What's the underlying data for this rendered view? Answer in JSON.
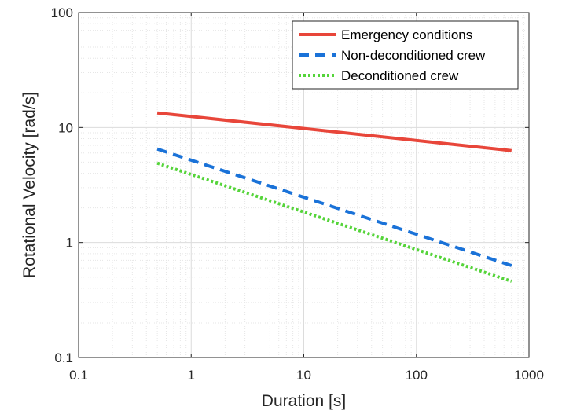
{
  "chart_data": {
    "type": "line",
    "xscale": "log",
    "yscale": "log",
    "xlim": [
      0.1,
      1000
    ],
    "ylim": [
      0.1,
      100
    ],
    "xticks": [
      0.1,
      1,
      10,
      100,
      1000
    ],
    "xtick_labels": [
      "0.1",
      "1",
      "10",
      "100",
      "1000"
    ],
    "yticks": [
      0.1,
      1,
      10,
      100
    ],
    "ytick_labels": [
      "0.1",
      "1",
      "10",
      "100"
    ],
    "xlabel": "Duration [s]",
    "ylabel": "Rotational Velocity [rad/s]",
    "grid": true,
    "minor_grid": true,
    "legend_position": "top-right",
    "series": [
      {
        "name": "Emergency conditions",
        "color": "#e8463a",
        "style": "solid",
        "x": [
          0.5,
          700
        ],
        "y": [
          13.4,
          6.3
        ]
      },
      {
        "name": "Non-deconditioned crew",
        "color": "#1a72d8",
        "style": "dashed",
        "x": [
          0.5,
          700
        ],
        "y": [
          6.5,
          0.63
        ]
      },
      {
        "name": "Deconditioned crew",
        "color": "#55d43a",
        "style": "dotted",
        "x": [
          0.5,
          700
        ],
        "y": [
          4.9,
          0.46
        ]
      }
    ]
  }
}
